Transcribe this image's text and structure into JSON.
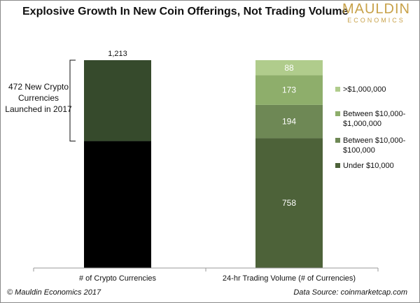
{
  "title": "Explosive Growth In New Coin Offerings, Not Trading Volume",
  "logo": {
    "main": "MAULDIN",
    "sub": "ECONOMICS"
  },
  "annotation": {
    "lines": [
      "472 New Crypto",
      "Currencies",
      "Launched in 2017"
    ],
    "value": 472
  },
  "footer": {
    "left": "© Mauldin Economics 2017",
    "right": "Data Source: coinmarketcap.com"
  },
  "colors": {
    "bar_old": "#000000",
    "bar_new": "#364a2c",
    "under_10k": "#4d6239",
    "between_10k_100k": "#6e8855",
    "between_10k_1m": "#8eae6b",
    "over_1m": "#b0cc8c"
  },
  "chart_data": {
    "type": "bar",
    "stacked": true,
    "categories": [
      "# of Crypto Currencies",
      "24-hr Trading Volume (# of Currencies)"
    ],
    "total_label": "1,213",
    "total": 1213,
    "new_currencies": 472,
    "legend_position": "right",
    "series": [
      {
        "name": "Under $10,000",
        "values": [
          null,
          758
        ],
        "labels": [
          "",
          "758"
        ]
      },
      {
        "name": "Between $10,000-$100,000",
        "values": [
          null,
          194
        ],
        "labels": [
          "",
          "194"
        ]
      },
      {
        "name": "Between $10,000-$1,000,000",
        "values": [
          null,
          173
        ],
        "labels": [
          "",
          "173"
        ]
      },
      {
        "name": ">$1,000,000",
        "values": [
          null,
          88
        ],
        "labels": [
          "",
          "88"
        ]
      }
    ],
    "legend": [
      {
        "name": ">$1,000,000",
        "lines": [
          ">$1,000,000"
        ]
      },
      {
        "name": "Between $10,000-$1,000,000",
        "lines": [
          "Between $10,000-",
          "$1,000,000"
        ]
      },
      {
        "name": "Between $10,000-$100,000",
        "lines": [
          "Between $10,000-",
          "$100,000"
        ]
      },
      {
        "name": "Under $10,000",
        "lines": [
          "Under $10,000"
        ]
      }
    ],
    "ylim": [
      0,
      1213
    ],
    "grid": false
  }
}
